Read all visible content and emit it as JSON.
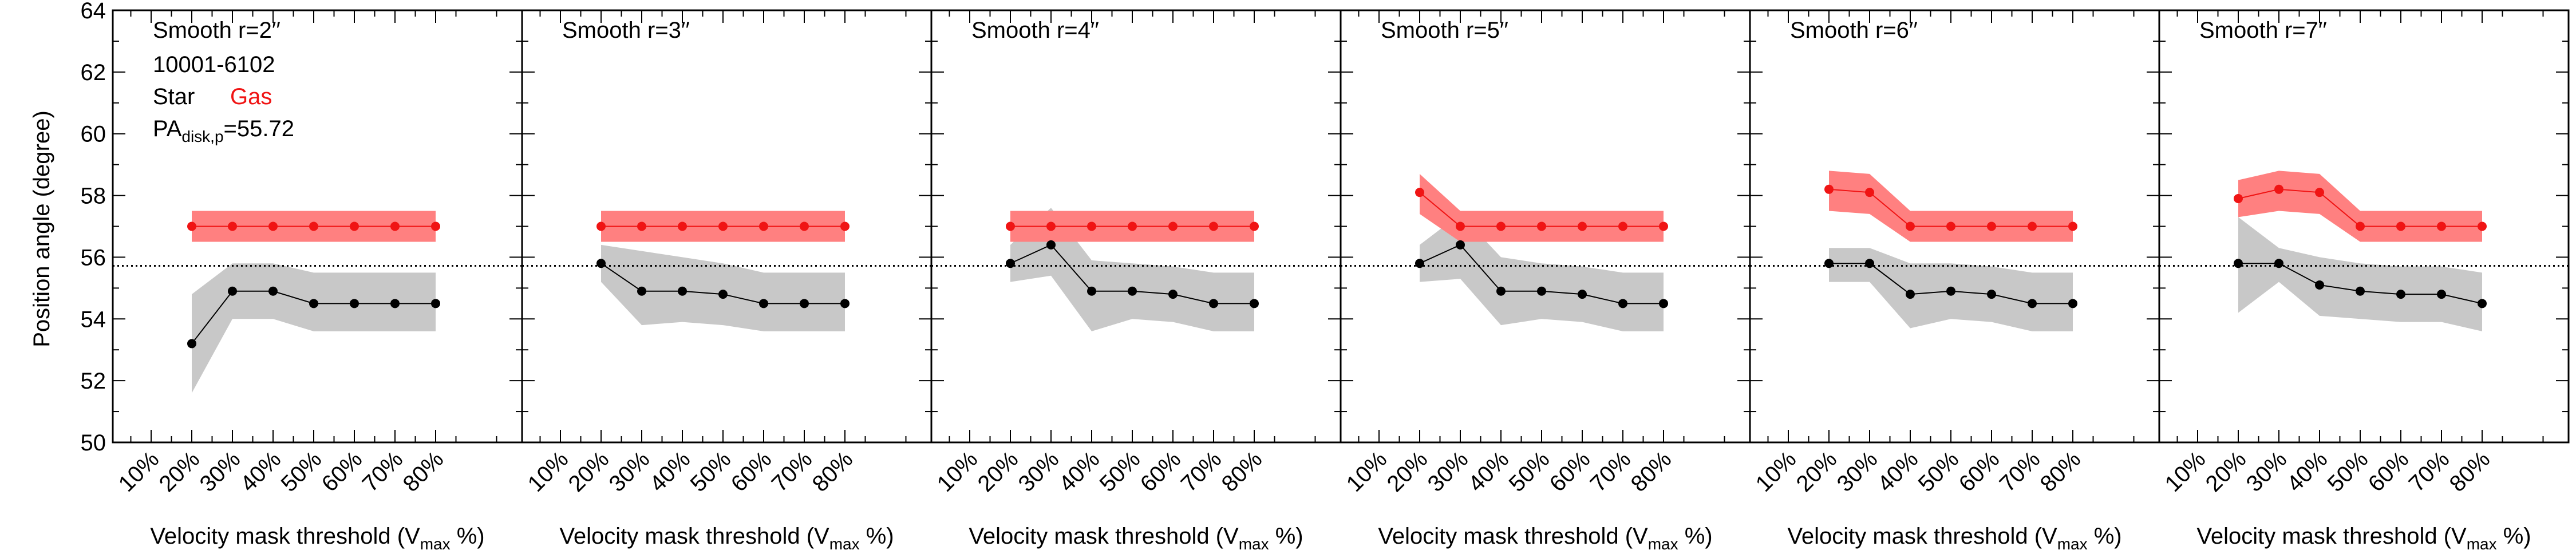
{
  "info": {
    "object_id": "10001-6102",
    "legend_star": "Star",
    "legend_gas": "Gas",
    "pa_prefix": "PA",
    "pa_sub": "disk,p",
    "pa_value": "=55.72"
  },
  "y_axis_label": "Position angle (degree)",
  "x_axis_label_parts": [
    "Velocity mask threshold (V",
    "max",
    " %)"
  ],
  "colors": {
    "gas": "#f01414",
    "gas_band": "#ff8080",
    "star": "#000000",
    "star_band": "#c8c8c8"
  },
  "chart_data": [
    {
      "type": "line",
      "title": "Smooth r=2′′",
      "x": [
        "10%",
        "20%",
        "30%",
        "40%",
        "50%",
        "60%",
        "70%",
        "80%"
      ],
      "ylim": [
        50,
        64
      ],
      "yticks": [
        50,
        52,
        54,
        56,
        58,
        60,
        62,
        64
      ],
      "reference_line": 55.72,
      "series": [
        {
          "name": "Star",
          "x": [
            "20%",
            "30%",
            "40%",
            "50%",
            "60%",
            "70%",
            "80%"
          ],
          "values": [
            53.2,
            54.9,
            54.9,
            54.5,
            54.5,
            54.5,
            54.5
          ],
          "lower": [
            51.6,
            54.0,
            54.0,
            53.6,
            53.6,
            53.6,
            53.6
          ],
          "upper": [
            54.8,
            55.8,
            55.8,
            55.5,
            55.5,
            55.5,
            55.5
          ]
        },
        {
          "name": "Gas",
          "x": [
            "20%",
            "30%",
            "40%",
            "50%",
            "60%",
            "70%",
            "80%"
          ],
          "values": [
            57.0,
            57.0,
            57.0,
            57.0,
            57.0,
            57.0,
            57.0
          ],
          "lower": [
            56.5,
            56.5,
            56.5,
            56.5,
            56.5,
            56.5,
            56.5
          ],
          "upper": [
            57.5,
            57.5,
            57.5,
            57.5,
            57.5,
            57.5,
            57.5
          ]
        }
      ]
    },
    {
      "type": "line",
      "title": "Smooth r=3′′",
      "x": [
        "10%",
        "20%",
        "30%",
        "40%",
        "50%",
        "60%",
        "70%",
        "80%"
      ],
      "ylim": [
        50,
        64
      ],
      "reference_line": 55.72,
      "series": [
        {
          "name": "Star",
          "x": [
            "20%",
            "30%",
            "40%",
            "50%",
            "60%",
            "70%",
            "80%"
          ],
          "values": [
            55.8,
            54.9,
            54.9,
            54.8,
            54.5,
            54.5,
            54.5
          ],
          "lower": [
            55.2,
            53.8,
            53.9,
            53.8,
            53.6,
            53.6,
            53.6
          ],
          "upper": [
            56.4,
            56.2,
            56.0,
            55.8,
            55.5,
            55.5,
            55.5
          ]
        },
        {
          "name": "Gas",
          "x": [
            "20%",
            "30%",
            "40%",
            "50%",
            "60%",
            "70%",
            "80%"
          ],
          "values": [
            57.0,
            57.0,
            57.0,
            57.0,
            57.0,
            57.0,
            57.0
          ],
          "lower": [
            56.5,
            56.5,
            56.5,
            56.5,
            56.5,
            56.5,
            56.5
          ],
          "upper": [
            57.5,
            57.5,
            57.5,
            57.5,
            57.5,
            57.5,
            57.5
          ]
        }
      ]
    },
    {
      "type": "line",
      "title": "Smooth r=4′′",
      "x": [
        "10%",
        "20%",
        "30%",
        "40%",
        "50%",
        "60%",
        "70%",
        "80%"
      ],
      "ylim": [
        50,
        64
      ],
      "reference_line": 55.72,
      "series": [
        {
          "name": "Star",
          "x": [
            "20%",
            "30%",
            "40%",
            "50%",
            "60%",
            "70%",
            "80%"
          ],
          "values": [
            55.8,
            56.4,
            54.9,
            54.9,
            54.8,
            54.5,
            54.5
          ],
          "lower": [
            55.2,
            55.4,
            53.6,
            54.0,
            53.9,
            53.6,
            53.6
          ],
          "upper": [
            56.4,
            57.6,
            55.9,
            55.8,
            55.7,
            55.5,
            55.5
          ]
        },
        {
          "name": "Gas",
          "x": [
            "20%",
            "30%",
            "40%",
            "50%",
            "60%",
            "70%",
            "80%"
          ],
          "values": [
            57.0,
            57.0,
            57.0,
            57.0,
            57.0,
            57.0,
            57.0
          ],
          "lower": [
            56.5,
            56.5,
            56.5,
            56.5,
            56.5,
            56.5,
            56.5
          ],
          "upper": [
            57.5,
            57.5,
            57.5,
            57.5,
            57.5,
            57.5,
            57.5
          ]
        }
      ]
    },
    {
      "type": "line",
      "title": "Smooth r=5′′",
      "x": [
        "10%",
        "20%",
        "30%",
        "40%",
        "50%",
        "60%",
        "70%",
        "80%"
      ],
      "ylim": [
        50,
        64
      ],
      "reference_line": 55.72,
      "series": [
        {
          "name": "Star",
          "x": [
            "20%",
            "30%",
            "40%",
            "50%",
            "60%",
            "70%",
            "80%"
          ],
          "values": [
            55.8,
            56.4,
            54.9,
            54.9,
            54.8,
            54.5,
            54.5
          ],
          "lower": [
            55.2,
            55.3,
            53.8,
            54.0,
            53.9,
            53.6,
            53.6
          ],
          "upper": [
            56.4,
            57.4,
            56.0,
            55.8,
            55.7,
            55.5,
            55.5
          ]
        },
        {
          "name": "Gas",
          "x": [
            "20%",
            "30%",
            "40%",
            "50%",
            "60%",
            "70%",
            "80%"
          ],
          "values": [
            58.1,
            57.0,
            57.0,
            57.0,
            57.0,
            57.0,
            57.0
          ],
          "lower": [
            57.4,
            56.5,
            56.5,
            56.5,
            56.5,
            56.5,
            56.5
          ],
          "upper": [
            58.7,
            57.5,
            57.5,
            57.5,
            57.5,
            57.5,
            57.5
          ]
        }
      ]
    },
    {
      "type": "line",
      "title": "Smooth r=6′′",
      "x": [
        "10%",
        "20%",
        "30%",
        "40%",
        "50%",
        "60%",
        "70%",
        "80%"
      ],
      "ylim": [
        50,
        64
      ],
      "reference_line": 55.72,
      "series": [
        {
          "name": "Star",
          "x": [
            "20%",
            "30%",
            "40%",
            "50%",
            "60%",
            "70%",
            "80%"
          ],
          "values": [
            55.8,
            55.8,
            54.8,
            54.9,
            54.8,
            54.5,
            54.5
          ],
          "lower": [
            55.2,
            55.2,
            53.7,
            54.0,
            53.9,
            53.6,
            53.6
          ],
          "upper": [
            56.3,
            56.3,
            55.8,
            55.8,
            55.7,
            55.5,
            55.5
          ]
        },
        {
          "name": "Gas",
          "x": [
            "20%",
            "30%",
            "40%",
            "50%",
            "60%",
            "70%",
            "80%"
          ],
          "values": [
            58.2,
            58.1,
            57.0,
            57.0,
            57.0,
            57.0,
            57.0
          ],
          "lower": [
            57.5,
            57.4,
            56.5,
            56.5,
            56.5,
            56.5,
            56.5
          ],
          "upper": [
            58.8,
            58.7,
            57.5,
            57.5,
            57.5,
            57.5,
            57.5
          ]
        }
      ]
    },
    {
      "type": "line",
      "title": "Smooth r=7′′",
      "x": [
        "10%",
        "20%",
        "30%",
        "40%",
        "50%",
        "60%",
        "70%",
        "80%"
      ],
      "ylim": [
        50,
        64
      ],
      "reference_line": 55.72,
      "series": [
        {
          "name": "Star",
          "x": [
            "20%",
            "30%",
            "40%",
            "50%",
            "60%",
            "70%",
            "80%"
          ],
          "values": [
            55.8,
            55.8,
            55.1,
            54.9,
            54.8,
            54.8,
            54.5
          ],
          "lower": [
            54.2,
            55.2,
            54.1,
            54.0,
            53.9,
            53.9,
            53.6
          ],
          "upper": [
            57.3,
            56.3,
            56.0,
            55.8,
            55.7,
            55.7,
            55.5
          ]
        },
        {
          "name": "Gas",
          "x": [
            "20%",
            "30%",
            "40%",
            "50%",
            "60%",
            "70%",
            "80%"
          ],
          "values": [
            57.9,
            58.2,
            58.1,
            57.0,
            57.0,
            57.0,
            57.0
          ],
          "lower": [
            57.3,
            57.5,
            57.4,
            56.5,
            56.5,
            56.5,
            56.5
          ],
          "upper": [
            58.5,
            58.8,
            58.7,
            57.5,
            57.5,
            57.5,
            57.5
          ]
        }
      ]
    }
  ]
}
